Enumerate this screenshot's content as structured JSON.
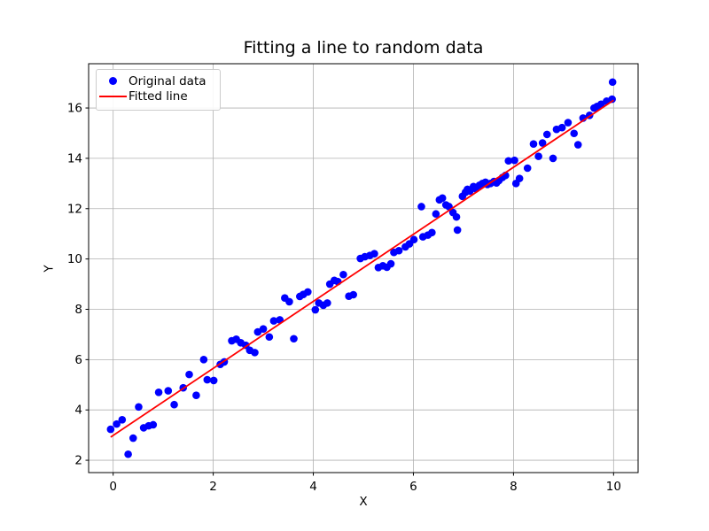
{
  "chart_data": {
    "type": "scatter",
    "title": "Fitting a line to random data",
    "xlabel": "X",
    "ylabel": "Y",
    "xlim": [
      -0.49,
      10.49
    ],
    "ylim": [
      1.51,
      17.76
    ],
    "xticks": [
      0,
      2,
      4,
      6,
      8,
      10
    ],
    "yticks": [
      2,
      4,
      6,
      8,
      10,
      12,
      14,
      16
    ],
    "grid": true,
    "legend": {
      "location": "upper left",
      "entries": [
        "Original data",
        "Fitted line"
      ]
    },
    "colors": {
      "scatter": "#0000ff",
      "line": "#ff0000",
      "grid": "#b0b0b0",
      "spine": "#000000",
      "text": "#000000",
      "legend_border": "#cccccc",
      "background": "#ffffff"
    },
    "series": [
      {
        "name": "Original data",
        "type": "scatter",
        "color": "#0000ff",
        "points": [
          [
            -0.05,
            3.23
          ],
          [
            0.07,
            3.44
          ],
          [
            0.18,
            3.61
          ],
          [
            0.3,
            2.24
          ],
          [
            0.4,
            2.88
          ],
          [
            0.51,
            4.12
          ],
          [
            0.61,
            3.29
          ],
          [
            0.71,
            3.37
          ],
          [
            0.8,
            3.41
          ],
          [
            0.91,
            4.7
          ],
          [
            1.1,
            4.76
          ],
          [
            1.22,
            4.21
          ],
          [
            1.4,
            4.88
          ],
          [
            1.52,
            5.41
          ],
          [
            1.66,
            4.58
          ],
          [
            1.81,
            6.0
          ],
          [
            1.88,
            5.2
          ],
          [
            2.01,
            5.17
          ],
          [
            2.14,
            5.81
          ],
          [
            2.22,
            5.91
          ],
          [
            2.37,
            6.75
          ],
          [
            2.46,
            6.81
          ],
          [
            2.55,
            6.67
          ],
          [
            2.65,
            6.57
          ],
          [
            2.73,
            6.37
          ],
          [
            2.83,
            6.28
          ],
          [
            2.89,
            7.1
          ],
          [
            3.0,
            7.22
          ],
          [
            3.12,
            6.9
          ],
          [
            3.21,
            7.54
          ],
          [
            3.33,
            7.58
          ],
          [
            3.43,
            8.45
          ],
          [
            3.52,
            8.3
          ],
          [
            3.61,
            6.83
          ],
          [
            3.73,
            8.51
          ],
          [
            3.8,
            8.59
          ],
          [
            3.89,
            8.69
          ],
          [
            4.04,
            7.98
          ],
          [
            4.11,
            8.25
          ],
          [
            4.2,
            8.16
          ],
          [
            4.28,
            8.25
          ],
          [
            4.33,
            9.0
          ],
          [
            4.42,
            9.15
          ],
          [
            4.49,
            9.1
          ],
          [
            4.6,
            9.38
          ],
          [
            4.71,
            8.52
          ],
          [
            4.8,
            8.58
          ],
          [
            4.94,
            10.02
          ],
          [
            5.03,
            10.09
          ],
          [
            5.13,
            10.14
          ],
          [
            5.22,
            10.21
          ],
          [
            5.3,
            9.66
          ],
          [
            5.39,
            9.73
          ],
          [
            5.47,
            9.67
          ],
          [
            5.55,
            9.81
          ],
          [
            5.61,
            10.26
          ],
          [
            5.71,
            10.33
          ],
          [
            5.84,
            10.48
          ],
          [
            5.92,
            10.6
          ],
          [
            6.01,
            10.77
          ],
          [
            6.16,
            12.08
          ],
          [
            6.19,
            10.88
          ],
          [
            6.29,
            10.95
          ],
          [
            6.37,
            11.05
          ],
          [
            6.45,
            11.79
          ],
          [
            6.52,
            12.35
          ],
          [
            6.58,
            12.42
          ],
          [
            6.65,
            12.15
          ],
          [
            6.71,
            12.08
          ],
          [
            6.79,
            11.85
          ],
          [
            6.86,
            11.67
          ],
          [
            6.88,
            11.15
          ],
          [
            6.98,
            12.49
          ],
          [
            7.04,
            12.65
          ],
          [
            7.08,
            12.77
          ],
          [
            7.13,
            12.7
          ],
          [
            7.2,
            12.88
          ],
          [
            7.25,
            12.79
          ],
          [
            7.32,
            12.93
          ],
          [
            7.38,
            13.0
          ],
          [
            7.44,
            13.05
          ],
          [
            7.48,
            12.96
          ],
          [
            7.54,
            13.0
          ],
          [
            7.61,
            13.08
          ],
          [
            7.66,
            13.02
          ],
          [
            7.71,
            13.12
          ],
          [
            7.78,
            13.24
          ],
          [
            7.84,
            13.32
          ],
          [
            7.9,
            13.9
          ],
          [
            8.02,
            13.92
          ],
          [
            8.05,
            13.0
          ],
          [
            8.12,
            13.2
          ],
          [
            8.28,
            13.61
          ],
          [
            8.4,
            14.57
          ],
          [
            8.5,
            14.08
          ],
          [
            8.58,
            14.61
          ],
          [
            8.67,
            14.95
          ],
          [
            8.79,
            14.0
          ],
          [
            8.86,
            15.15
          ],
          [
            8.97,
            15.22
          ],
          [
            9.09,
            15.42
          ],
          [
            9.21,
            14.99
          ],
          [
            9.29,
            14.54
          ],
          [
            9.39,
            15.6
          ],
          [
            9.52,
            15.71
          ],
          [
            9.61,
            16.0
          ],
          [
            9.67,
            16.06
          ],
          [
            9.75,
            16.15
          ],
          [
            9.86,
            16.27
          ],
          [
            9.97,
            16.35
          ],
          [
            9.98,
            17.03
          ]
        ]
      },
      {
        "name": "Fitted line",
        "type": "line",
        "color": "#ff0000",
        "slope": 1.33,
        "intercept": 2.99,
        "points": [
          [
            -0.05,
            2.92
          ],
          [
            10.0,
            16.31
          ]
        ]
      }
    ]
  }
}
